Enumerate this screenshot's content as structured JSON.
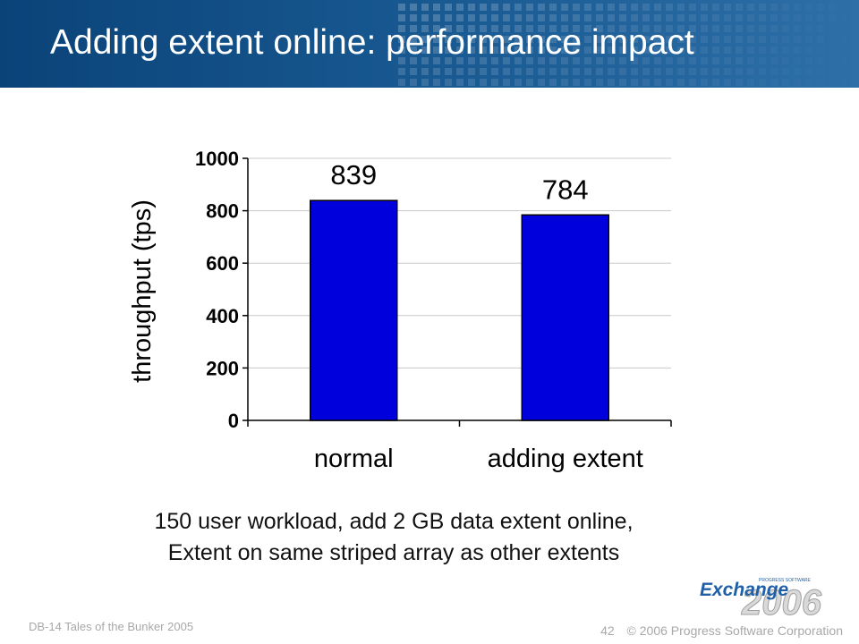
{
  "slide": {
    "title": "Adding extent online: performance impact",
    "caption_line1": "150 user workload, add 2 GB data extent online,",
    "caption_line2": "Extent on same striped array as other extents",
    "footer_left": "DB-14 Tales of the Bunker 2005",
    "page_number": "42",
    "copyright": "© 2006 Progress Software Corporation",
    "logo_small": "PROGRESS SOFTWARE",
    "logo_word": "Exchange",
    "logo_year": "2006"
  },
  "colors": {
    "header": "#1a5b94",
    "bar": "#0000dd",
    "logo_blue": "#1f5fa8",
    "logo_year": "#d9d9d9"
  },
  "chart_data": {
    "type": "bar",
    "categories": [
      "normal",
      "adding extent"
    ],
    "values": [
      839,
      784
    ],
    "data_labels": [
      "839",
      "784"
    ],
    "ylabel": "throughput (tps)",
    "xlabel": "",
    "ylim": [
      0,
      1000
    ],
    "yticks": [
      0,
      200,
      400,
      600,
      800,
      1000
    ],
    "ytick_labels": [
      "0",
      "200",
      "400",
      "600",
      "800",
      "1000"
    ],
    "grid": true,
    "legend": "none"
  }
}
